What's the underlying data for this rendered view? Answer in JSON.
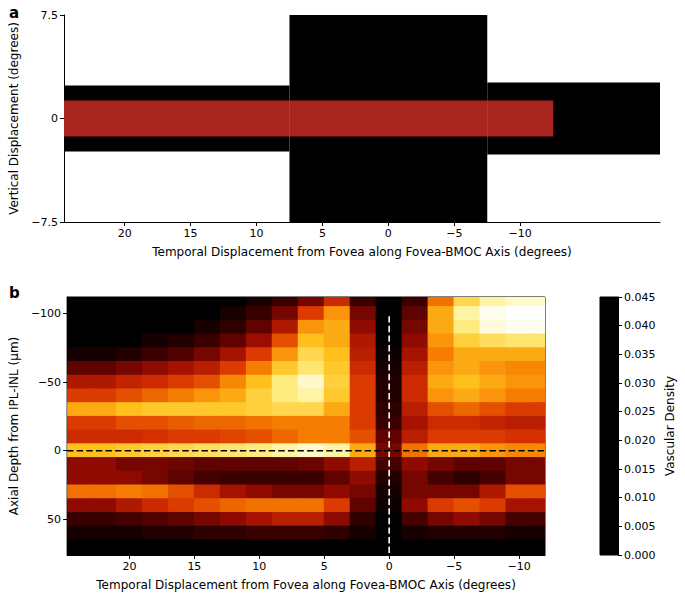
{
  "chart_data": [
    {
      "type": "montage",
      "panel_label": "a",
      "x_label": "Temporal Displacement from Fovea along Fovea-BMOC Axis (degrees)",
      "y_label": "Vertical Displacement (degrees)",
      "xlim": [
        24.6,
        -20.6
      ],
      "xticks": [
        20,
        15,
        10,
        5,
        0,
        {
          "value": -5,
          "label": "−5"
        },
        {
          "value": -10,
          "label": "−10"
        }
      ],
      "ylim": [
        -7.5,
        7.5
      ],
      "yticks": [
        {
          "value": -7.5,
          "label": "−7.5"
        },
        0,
        7.5
      ],
      "grid": false,
      "tiles": [
        {
          "x": [
            24.6,
            7.5
          ],
          "y": [
            -2.4,
            2.4
          ],
          "color": "#000000"
        },
        {
          "x": [
            7.5,
            -7.5
          ],
          "y": [
            -7.5,
            7.5
          ],
          "color": "#000000"
        },
        {
          "x": [
            -7.5,
            -20.6
          ],
          "y": [
            -2.6,
            2.6
          ],
          "color": "#000000"
        }
      ],
      "highlight": {
        "x": [
          24.6,
          -12.5
        ],
        "y": [
          -1.3,
          1.3
        ],
        "color": "#e0302a"
      }
    },
    {
      "type": "heatmap",
      "panel_label": "b",
      "x_label": "Temporal Displacement from Fovea along Fovea-BMOC Axis (degrees)",
      "y_label": "Axial Depth from IPL-INL (μm)",
      "xlim": [
        24.8,
        -12
      ],
      "xticks": [
        20,
        15,
        10,
        5,
        0,
        {
          "value": -5,
          "label": "−5"
        },
        {
          "value": -10,
          "label": "−10"
        }
      ],
      "ylim": [
        76,
        -112
      ],
      "yticks": [
        {
          "value": -100,
          "label": "−100"
        },
        {
          "value": -50,
          "label": "−50"
        },
        0,
        50
      ],
      "grid": false,
      "x": [
        24,
        22,
        20,
        18,
        16,
        14,
        12,
        10,
        8,
        6,
        4,
        2,
        0,
        -2,
        -4,
        -6,
        -8,
        -10,
        -12
      ],
      "y": [
        -110,
        -100,
        -90,
        -80,
        -70,
        -60,
        -50,
        -40,
        -30,
        -20,
        -10,
        0,
        10,
        20,
        30,
        40,
        50,
        60,
        70
      ],
      "values": [
        [
          0,
          0,
          0,
          0,
          0,
          0,
          0,
          0.002,
          0.005,
          0.01,
          0.018,
          0.005,
          0,
          0.005,
          0.025,
          0.035,
          0.04,
          0.042,
          0.042
        ],
        [
          0,
          0,
          0,
          0,
          0,
          0,
          0.002,
          0.005,
          0.01,
          0.02,
          0.028,
          0.01,
          0,
          0.008,
          0.03,
          0.04,
          0.044,
          0.045,
          0.045
        ],
        [
          0,
          0,
          0,
          0,
          0,
          0.002,
          0.004,
          0.008,
          0.015,
          0.028,
          0.03,
          0.012,
          0,
          0.01,
          0.03,
          0.038,
          0.043,
          0.044,
          0.044
        ],
        [
          0,
          0,
          0,
          0.002,
          0.003,
          0.005,
          0.008,
          0.013,
          0.022,
          0.032,
          0.03,
          0.015,
          0,
          0.012,
          0.028,
          0.034,
          0.036,
          0.037,
          0.037
        ],
        [
          0.002,
          0.002,
          0.003,
          0.005,
          0.007,
          0.01,
          0.014,
          0.02,
          0.028,
          0.035,
          0.032,
          0.016,
          0.001,
          0.014,
          0.026,
          0.03,
          0.03,
          0.03,
          0.03
        ],
        [
          0.008,
          0.008,
          0.01,
          0.012,
          0.014,
          0.016,
          0.02,
          0.026,
          0.033,
          0.037,
          0.033,
          0.018,
          0.002,
          0.016,
          0.028,
          0.03,
          0.028,
          0.027,
          0.027
        ],
        [
          0.015,
          0.015,
          0.017,
          0.018,
          0.02,
          0.022,
          0.027,
          0.032,
          0.038,
          0.042,
          0.034,
          0.02,
          0.003,
          0.018,
          0.03,
          0.032,
          0.03,
          0.028,
          0.028
        ],
        [
          0.02,
          0.02,
          0.022,
          0.024,
          0.026,
          0.028,
          0.03,
          0.034,
          0.038,
          0.04,
          0.033,
          0.02,
          0.003,
          0.018,
          0.028,
          0.03,
          0.028,
          0.026,
          0.026
        ],
        [
          0.03,
          0.03,
          0.032,
          0.033,
          0.033,
          0.033,
          0.033,
          0.034,
          0.035,
          0.035,
          0.03,
          0.02,
          0.004,
          0.016,
          0.022,
          0.024,
          0.022,
          0.02,
          0.02
        ],
        [
          0.02,
          0.02,
          0.022,
          0.022,
          0.023,
          0.024,
          0.024,
          0.025,
          0.026,
          0.026,
          0.026,
          0.02,
          0.005,
          0.014,
          0.018,
          0.018,
          0.017,
          0.016,
          0.016
        ],
        [
          0.018,
          0.018,
          0.018,
          0.019,
          0.02,
          0.02,
          0.021,
          0.022,
          0.024,
          0.026,
          0.026,
          0.022,
          0.008,
          0.016,
          0.02,
          0.02,
          0.02,
          0.019,
          0.019
        ],
        [
          0.032,
          0.032,
          0.033,
          0.034,
          0.035,
          0.036,
          0.037,
          0.038,
          0.04,
          0.042,
          0.04,
          0.03,
          0.01,
          0.025,
          0.03,
          0.03,
          0.028,
          0.027,
          0.027
        ],
        [
          0.012,
          0.012,
          0.01,
          0.01,
          0.009,
          0.008,
          0.008,
          0.008,
          0.008,
          0.009,
          0.012,
          0.016,
          0.006,
          0.012,
          0.01,
          0.008,
          0.008,
          0.01,
          0.01
        ],
        [
          0.012,
          0.012,
          0.012,
          0.01,
          0.008,
          0.006,
          0.005,
          0.005,
          0.005,
          0.005,
          0.008,
          0.012,
          0.003,
          0.01,
          0.006,
          0.004,
          0.006,
          0.01,
          0.01
        ],
        [
          0.025,
          0.025,
          0.026,
          0.025,
          0.022,
          0.018,
          0.014,
          0.012,
          0.01,
          0.01,
          0.012,
          0.01,
          0.002,
          0.01,
          0.01,
          0.01,
          0.015,
          0.022,
          0.022
        ],
        [
          0.012,
          0.012,
          0.015,
          0.018,
          0.02,
          0.022,
          0.024,
          0.025,
          0.025,
          0.025,
          0.02,
          0.008,
          0.001,
          0.012,
          0.02,
          0.022,
          0.02,
          0.014,
          0.014
        ],
        [
          0.005,
          0.005,
          0.006,
          0.007,
          0.008,
          0.01,
          0.012,
          0.014,
          0.016,
          0.016,
          0.012,
          0.004,
          0,
          0.006,
          0.01,
          0.012,
          0.01,
          0.006,
          0.006
        ],
        [
          0.002,
          0.002,
          0.002,
          0.003,
          0.003,
          0.004,
          0.004,
          0.005,
          0.005,
          0.005,
          0.004,
          0.002,
          0,
          0.002,
          0.003,
          0.003,
          0.003,
          0.002,
          0.002
        ],
        [
          0,
          0,
          0,
          0,
          0,
          0,
          0,
          0,
          0,
          0,
          0,
          0,
          0,
          0,
          0,
          0,
          0,
          0,
          0
        ]
      ],
      "colorbar": {
        "label": "Vascular Density",
        "range": [
          0,
          0.045
        ],
        "ticks": [
          {
            "value": 0,
            "label": "0.000"
          },
          {
            "value": 0.005,
            "label": "0.005"
          },
          {
            "value": 0.01,
            "label": "0.010"
          },
          {
            "value": 0.015,
            "label": "0.015"
          },
          {
            "value": 0.02,
            "label": "0.020"
          },
          {
            "value": 0.025,
            "label": "0.025"
          },
          {
            "value": 0.03,
            "label": "0.030"
          },
          {
            "value": 0.035,
            "label": "0.035"
          },
          {
            "value": 0.04,
            "label": "0.040"
          },
          {
            "value": 0.045,
            "label": "0.045"
          }
        ]
      },
      "series": [
        {
          "type": "line",
          "x": [
            0,
            0
          ],
          "values": [
            -98,
            76
          ],
          "color": "#ffffff",
          "line_style": "dashed"
        },
        {
          "type": "line",
          "x": [
            24.8,
            -12
          ],
          "values": [
            0,
            0
          ],
          "color": "#000000",
          "line_style": "dashed"
        }
      ]
    }
  ]
}
